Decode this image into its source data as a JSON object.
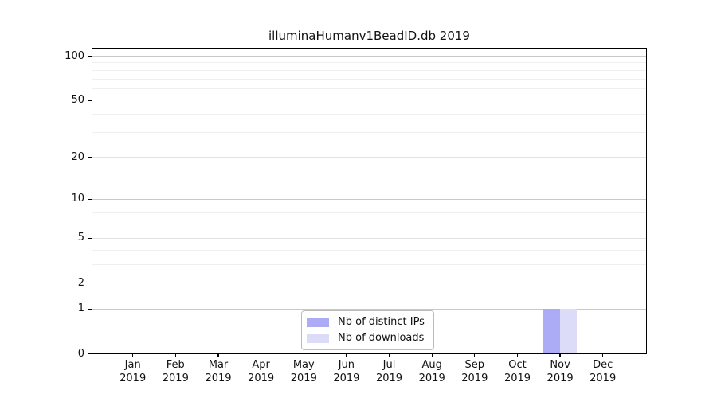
{
  "chart_data": {
    "type": "bar",
    "title": "illuminaHumanv1BeadID.db 2019",
    "categories": [
      "Jan",
      "Feb",
      "Mar",
      "Apr",
      "May",
      "Jun",
      "Jul",
      "Aug",
      "Sep",
      "Oct",
      "Nov",
      "Dec"
    ],
    "x_axis": {
      "year_label": "2019"
    },
    "y_axis": {
      "scale": "log1p",
      "range": [
        0,
        100
      ],
      "major_ticks": [
        0,
        1,
        2,
        5,
        10,
        20,
        50,
        100
      ],
      "minor_gridlines": [
        3,
        4,
        6,
        7,
        8,
        9,
        30,
        40,
        60,
        70,
        80,
        90
      ],
      "emphasized_gridlines": [
        1,
        10,
        100
      ],
      "grid": "horizontal"
    },
    "series": [
      {
        "name": "Nb of distinct IPs",
        "color": "#acacf6",
        "values": [
          0,
          0,
          0,
          0,
          0,
          0,
          0,
          0,
          0,
          0,
          1,
          0
        ]
      },
      {
        "name": "Nb of downloads",
        "color": "#dcdcf9",
        "values": [
          0,
          0,
          0,
          0,
          0,
          0,
          0,
          0,
          0,
          0,
          1,
          0
        ]
      }
    ],
    "legend": {
      "position": "bottom-center"
    }
  },
  "colors": {
    "background": "#ffffff",
    "spine": "#000000",
    "grid_emphasized": "#c8c8c8",
    "grid_major": "#e2e2e2",
    "grid_minor": "#efefef",
    "text": "#111111"
  }
}
